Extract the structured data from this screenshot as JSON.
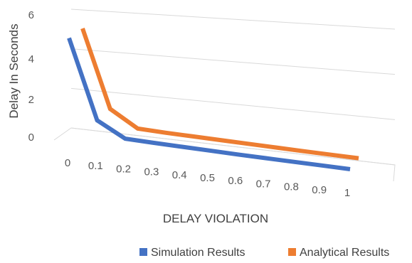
{
  "chart_data": {
    "type": "line",
    "title": "",
    "xlabel": "DELAY VIOLATION",
    "ylabel": "Delay In Seconds",
    "categories": [
      "0",
      "0.1",
      "0.2",
      "0.3",
      "0.4",
      "0.5",
      "0.6",
      "0.7",
      "0.8",
      "0.9",
      "1"
    ],
    "y_ticks": [
      "0",
      "2",
      "4",
      "6"
    ],
    "ylim": [
      0,
      6
    ],
    "grid": true,
    "projection": "3d-perspective",
    "legend_position": "bottom-right",
    "series": [
      {
        "name": "Simulation Results",
        "color": "#4472C4",
        "values": [
          5.0,
          1.2,
          0.45,
          0.38,
          0.32,
          0.26,
          0.2,
          0.15,
          0.1,
          0.05,
          0.0
        ]
      },
      {
        "name": "Analytical Results",
        "color": "#ED7D31",
        "values": [
          5.3,
          1.45,
          0.6,
          0.52,
          0.46,
          0.4,
          0.34,
          0.28,
          0.22,
          0.17,
          0.12
        ]
      }
    ]
  }
}
